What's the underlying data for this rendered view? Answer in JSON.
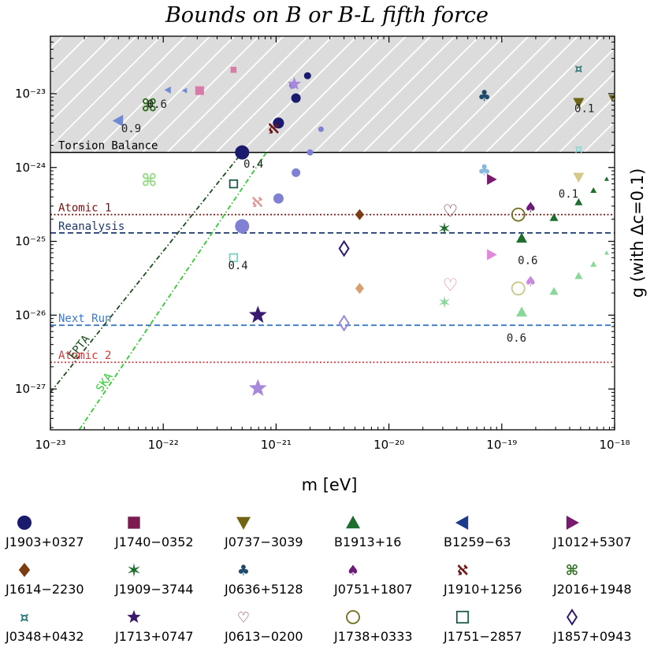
{
  "chart_data": {
    "type": "scatter",
    "title": "Bounds on B or B-L fifth force",
    "xlabel": "m [eV]",
    "ylabel": "g (with Δc=0.1)",
    "x_scale": "log",
    "y_scale": "log",
    "xlim": [
      1e-23,
      1e-18
    ],
    "ylim": [
      2.8e-28,
      6e-23
    ],
    "x_ticks": [
      {
        "value": 1e-23,
        "label": "10⁻²³"
      },
      {
        "value": 1e-22,
        "label": "10⁻²²"
      },
      {
        "value": 1e-21,
        "label": "10⁻²¹"
      },
      {
        "value": 1e-20,
        "label": "10⁻²⁰"
      },
      {
        "value": 1e-19,
        "label": "10⁻¹⁹"
      },
      {
        "value": 1e-18,
        "label": "10⁻¹⁸"
      }
    ],
    "y_ticks": [
      {
        "value": 1e-23,
        "label": "10⁻²³"
      },
      {
        "value": 1e-24,
        "label": "10⁻²⁴"
      },
      {
        "value": 1e-25,
        "label": "10⁻²⁵"
      },
      {
        "value": 1e-26,
        "label": "10⁻²⁶"
      },
      {
        "value": 1e-27,
        "label": "10⁻²⁷"
      }
    ],
    "excluded_region": {
      "y_min": 1.6e-24,
      "style": "hatched",
      "color": "#dcdcdc"
    },
    "horizontal_lines": [
      {
        "name": "Torsion Balance",
        "y": 1.6e-24,
        "color": "#000000",
        "dash": "solid"
      },
      {
        "name": "Atomic 1",
        "y": 2.3e-25,
        "color": "#7a1010",
        "dash": "dot"
      },
      {
        "name": "Reanalysis",
        "y": 1.3e-25,
        "color": "#1a3a6e",
        "dash": "dash"
      },
      {
        "name": "Next Run",
        "y": 7.3e-27,
        "color": "#3c79c9",
        "dash": "dash"
      },
      {
        "name": "Atomic 2",
        "y": 2.3e-27,
        "color": "#d63a3a",
        "dash": "dot"
      }
    ],
    "sloped_lines": [
      {
        "name": "EPTA",
        "x": [
          1e-23,
          5e-22
        ],
        "y": [
          9e-28,
          1.6e-24
        ],
        "color": "#1e4d1e",
        "dash": "dashdot"
      },
      {
        "name": "SKA",
        "x": [
          1.8e-23,
          8.2e-22
        ],
        "y": [
          2.8e-28,
          1.6e-24
        ],
        "color": "#2ecc2e",
        "dash": "dashdot"
      }
    ],
    "annotations": [
      {
        "text": "0.9",
        "x": 5.2e-23,
        "y": 3e-24
      },
      {
        "text": "0.6",
        "x": 8.8e-23,
        "y": 6.4e-24
      },
      {
        "text": "0.4",
        "x": 6.3e-22,
        "y": 1e-24
      },
      {
        "text": "0.4",
        "x": 4.6e-22,
        "y": 4.2e-26
      },
      {
        "text": "0.1",
        "x": 5.4e-19,
        "y": 5.6e-24
      },
      {
        "text": "0.1",
        "x": 3.9e-19,
        "y": 3.9e-25
      },
      {
        "text": "0.6",
        "x": 1.7e-19,
        "y": 4.9e-26
      },
      {
        "text": "0.6",
        "x": 1.35e-19,
        "y": 4.4e-27
      }
    ],
    "series": [
      {
        "name": "J1903+0327",
        "marker": "circle",
        "color": "#1a1a6e",
        "points": [
          {
            "x": 5e-22,
            "y": 1.6e-24,
            "size": 18
          },
          {
            "x": 1.9e-21,
            "y": 1.75e-23,
            "size": 9
          },
          {
            "x": 1.5e-21,
            "y": 8.7e-24,
            "size": 12
          },
          {
            "x": 1.05e-21,
            "y": 4e-24,
            "size": 14
          }
        ]
      },
      {
        "name": "J1903+0327 (forecast)",
        "marker": "circle",
        "color": "#8080d4",
        "points": [
          {
            "x": 5e-22,
            "y": 1.6e-25,
            "size": 18
          },
          {
            "x": 2e-21,
            "y": 1.6e-24,
            "size": 8
          },
          {
            "x": 1.5e-21,
            "y": 8.5e-25,
            "size": 11
          },
          {
            "x": 1.05e-21,
            "y": 3.8e-25,
            "size": 13
          },
          {
            "x": 2.5e-21,
            "y": 3.3e-24,
            "size": 7
          },
          {
            "x": 1.4e-21,
            "y": 1.3e-23,
            "size": 9
          }
        ]
      },
      {
        "name": "J1740-0352",
        "marker": "square",
        "color": "#d67ca8",
        "points": [
          {
            "x": 2.1e-22,
            "y": 1.1e-23,
            "size": 13
          },
          {
            "x": 4.2e-22,
            "y": 2.1e-23,
            "size": 9
          }
        ]
      },
      {
        "name": "J0737-3039",
        "marker": "triangle-down",
        "color": "#6e6414",
        "points": [
          {
            "x": 4.8e-19,
            "y": 7.6e-24,
            "size": 14
          },
          {
            "x": 9.5e-19,
            "y": 8.8e-24,
            "size": 9
          }
        ]
      },
      {
        "name": "J0737-3039 (forecast)",
        "marker": "triangle-down",
        "color": "#d6c888",
        "points": [
          {
            "x": 4.8e-19,
            "y": 7.4e-25,
            "size": 14
          }
        ]
      },
      {
        "name": "B1913+16",
        "marker": "triangle-up",
        "color": "#1e6e2e",
        "points": [
          {
            "x": 1.5e-19,
            "y": 1.1e-25,
            "size": 14
          },
          {
            "x": 2.9e-19,
            "y": 2.1e-25,
            "size": 11
          },
          {
            "x": 4.8e-19,
            "y": 3.4e-25,
            "size": 10
          },
          {
            "x": 6.5e-19,
            "y": 4.9e-25,
            "size": 8
          },
          {
            "x": 8.5e-19,
            "y": 7e-25,
            "size": 6
          }
        ]
      },
      {
        "name": "B1913+16 (forecast)",
        "marker": "triangle-up",
        "color": "#88d898",
        "points": [
          {
            "x": 1.5e-19,
            "y": 1.1e-26,
            "size": 14
          },
          {
            "x": 2.9e-19,
            "y": 2.1e-26,
            "size": 11
          },
          {
            "x": 4.8e-19,
            "y": 3.4e-26,
            "size": 10
          },
          {
            "x": 6.5e-19,
            "y": 4.9e-26,
            "size": 8
          },
          {
            "x": 8.5e-19,
            "y": 7e-26,
            "size": 6
          }
        ]
      },
      {
        "name": "B1259-63",
        "marker": "triangle-left",
        "color": "#6e8ad4",
        "points": [
          {
            "x": 4e-23,
            "y": 4.3e-24,
            "size": 15
          },
          {
            "x": 1.1e-22,
            "y": 1.12e-23,
            "size": 9
          },
          {
            "x": 1.55e-22,
            "y": 1.1e-23,
            "size": 7
          }
        ]
      },
      {
        "name": "J1012+5307",
        "marker": "triangle-right",
        "color": "#7a1a6e",
        "points": [
          {
            "x": 8.1e-20,
            "y": 6.9e-25,
            "size": 14
          }
        ]
      },
      {
        "name": "J1012+5307 (forecast)",
        "marker": "triangle-right",
        "color": "#de8ad8",
        "points": [
          {
            "x": 8.1e-20,
            "y": 6.6e-26,
            "size": 14
          }
        ]
      },
      {
        "name": "J1614-2230",
        "marker": "diamond",
        "color": "#7a3c10",
        "points": [
          {
            "x": 5.5e-21,
            "y": 2.3e-25,
            "size": 14
          }
        ]
      },
      {
        "name": "J1614-2230 (forecast)",
        "marker": "diamond",
        "color": "#d8a070",
        "points": [
          {
            "x": 5.5e-21,
            "y": 2.3e-26,
            "size": 14
          }
        ]
      },
      {
        "name": "J1909-3744",
        "marker": "star6",
        "color": "#1e6e2e",
        "points": [
          {
            "x": 3.1e-20,
            "y": 1.5e-25,
            "size": 16
          }
        ]
      },
      {
        "name": "J1909-3744 (forecast)",
        "marker": "star6",
        "color": "#88d898",
        "points": [
          {
            "x": 3.1e-20,
            "y": 1.5e-26,
            "size": 16
          }
        ]
      },
      {
        "name": "J0636+5128",
        "marker": "club",
        "color": "#1e4a6e",
        "points": [
          {
            "x": 7e-20,
            "y": 9.5e-24,
            "size": 19
          }
        ]
      },
      {
        "name": "J0636+5128 (forecast)",
        "marker": "club",
        "color": "#88b8dc",
        "points": [
          {
            "x": 7e-20,
            "y": 9.3e-25,
            "size": 19
          }
        ]
      },
      {
        "name": "J0751+1807",
        "marker": "spade",
        "color": "#6e1a7a",
        "points": [
          {
            "x": 1.8e-19,
            "y": 2.9e-25,
            "size": 18
          }
        ]
      },
      {
        "name": "J0751+1807 (forecast)",
        "marker": "spade",
        "color": "#c888dc",
        "points": [
          {
            "x": 1.8e-19,
            "y": 2.9e-26,
            "size": 18
          }
        ]
      },
      {
        "name": "J1910+1256",
        "marker": "aleph",
        "color": "#6e1414",
        "points": [
          {
            "x": 9.5e-22,
            "y": 3.4e-24,
            "size": 18
          }
        ]
      },
      {
        "name": "J1910+1256 (forecast)",
        "marker": "aleph",
        "color": "#de9a9a",
        "points": [
          {
            "x": 6.8e-22,
            "y": 3.4e-25,
            "size": 18
          }
        ]
      },
      {
        "name": "J2016+1948",
        "marker": "command",
        "color": "#2e6e1e",
        "points": [
          {
            "x": 7.5e-23,
            "y": 7e-24,
            "size": 22
          }
        ]
      },
      {
        "name": "J2016+1948 (forecast)",
        "marker": "command",
        "color": "#98dc88",
        "points": [
          {
            "x": 7.5e-23,
            "y": 6.8e-25,
            "size": 22
          }
        ]
      },
      {
        "name": "J0348+0432",
        "marker": "currency",
        "color": "#2e7a7a",
        "points": [
          {
            "x": 4.8e-19,
            "y": 2.2e-23,
            "size": 16
          }
        ]
      },
      {
        "name": "J0348+0432 (forecast)",
        "marker": "currency",
        "color": "#88d8d8",
        "points": [
          {
            "x": 4.8e-19,
            "y": 1.8e-24,
            "size": 16
          }
        ]
      },
      {
        "name": "J1713+0747",
        "marker": "star5",
        "color": "#3a1a6e",
        "points": [
          {
            "x": 6.9e-22,
            "y": 1e-26,
            "size": 24
          }
        ]
      },
      {
        "name": "J1713+0747 (forecast)",
        "marker": "star5",
        "color": "#a888dc",
        "points": [
          {
            "x": 6.9e-22,
            "y": 1.02e-27,
            "size": 24
          },
          {
            "x": 1.45e-21,
            "y": 1.35e-23,
            "size": 18
          }
        ]
      },
      {
        "name": "J0613-0200",
        "marker": "heart",
        "color": "#7a1a2e",
        "points": [
          {
            "x": 3.5e-20,
            "y": 2.6e-25,
            "size": 22
          }
        ]
      },
      {
        "name": "J0613-0200 (forecast)",
        "marker": "heart",
        "color": "#de8aa0",
        "points": [
          {
            "x": 3.5e-20,
            "y": 2.6e-26,
            "size": 22
          }
        ]
      },
      {
        "name": "J1738+0333",
        "marker": "circle-open",
        "color": "#6e6e1a",
        "points": [
          {
            "x": 1.4e-19,
            "y": 2.3e-25,
            "size": 18
          }
        ]
      },
      {
        "name": "J1738+0333 (forecast)",
        "marker": "circle-open",
        "color": "#c8c888",
        "points": [
          {
            "x": 1.4e-19,
            "y": 2.3e-26,
            "size": 18
          }
        ]
      },
      {
        "name": "J1751-2857",
        "marker": "square-open",
        "color": "#1e5a4e",
        "points": [
          {
            "x": 4.2e-22,
            "y": 6e-25,
            "size": 12
          }
        ]
      },
      {
        "name": "J1751-2857 (forecast)",
        "marker": "square-open",
        "color": "#7ad0c4",
        "points": [
          {
            "x": 4.2e-22,
            "y": 6e-26,
            "size": 12
          }
        ]
      },
      {
        "name": "J1857+0943",
        "marker": "diamond-open",
        "color": "#2e1a6e",
        "points": [
          {
            "x": 4e-21,
            "y": 8e-26,
            "size": 18
          }
        ]
      },
      {
        "name": "J1857+0943 (forecast)",
        "marker": "diamond-open",
        "color": "#9a88dc",
        "points": [
          {
            "x": 4e-21,
            "y": 7.8e-27,
            "size": 18
          }
        ]
      }
    ]
  },
  "legend": {
    "placement": "below",
    "items": [
      {
        "label": "J1903+0327",
        "marker": "circle",
        "color": "#1a1a6e"
      },
      {
        "label": "J1740−0352",
        "marker": "square",
        "color": "#7a1a4e"
      },
      {
        "label": "J0737−3039",
        "marker": "triangle-down",
        "color": "#6e6414"
      },
      {
        "label": "B1913+16",
        "marker": "triangle-up",
        "color": "#1e6e2e"
      },
      {
        "label": "B1259−63",
        "marker": "triangle-left",
        "color": "#1a3a8e"
      },
      {
        "label": "J1012+5307",
        "marker": "triangle-right",
        "color": "#7a1a6e"
      },
      {
        "label": "J1614−2230",
        "marker": "diamond",
        "color": "#7a3c10"
      },
      {
        "label": "J1909−3744",
        "marker": "star6",
        "color": "#1e6e2e"
      },
      {
        "label": "J0636+5128",
        "marker": "club",
        "color": "#1e4a6e"
      },
      {
        "label": "J0751+1807",
        "marker": "spade",
        "color": "#6e1a7a"
      },
      {
        "label": "J1910+1256",
        "marker": "aleph",
        "color": "#6e1414"
      },
      {
        "label": "J2016+1948",
        "marker": "command",
        "color": "#2e6e1e"
      },
      {
        "label": "J0348+0432",
        "marker": "currency",
        "color": "#2e7a7a"
      },
      {
        "label": "J1713+0747",
        "marker": "star5",
        "color": "#3a1a6e"
      },
      {
        "label": "J0613−0200",
        "marker": "heart",
        "color": "#7a1a2e"
      },
      {
        "label": "J1738+0333",
        "marker": "circle-open",
        "color": "#6e6e1a"
      },
      {
        "label": "J1751−2857",
        "marker": "square-open",
        "color": "#1e5a4e"
      },
      {
        "label": "J1857+0943",
        "marker": "diamond-open",
        "color": "#2e1a6e"
      }
    ]
  }
}
